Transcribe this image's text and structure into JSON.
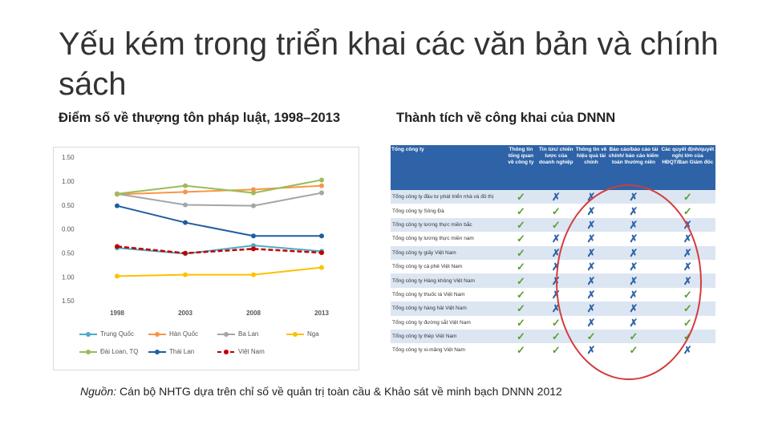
{
  "header": {
    "title": "Yếu kém trong triển khai các văn bản và chính sách"
  },
  "chart_data": {
    "type": "line",
    "title": "Điểm số về thượng tôn pháp luật, 1998–2013",
    "categories": [
      "1998",
      "2003",
      "2008",
      "2013"
    ],
    "ylim": [
      -1.5,
      1.5
    ],
    "yticks": [
      {
        "value": 1.5,
        "label": "1.50"
      },
      {
        "value": 1,
        "label": "1.00"
      },
      {
        "value": 0.5,
        "label": "0.50"
      },
      {
        "value": 0,
        "label": "0.00"
      },
      {
        "value": -0.5,
        "label": "0.50"
      },
      {
        "value": -1,
        "label": "1.00"
      },
      {
        "value": -1.5,
        "label": "1.50"
      }
    ],
    "series": [
      {
        "name": "Trung Quốc",
        "color": "#4bacc6",
        "values": [
          -0.38,
          -0.5,
          -0.33,
          -0.45
        ]
      },
      {
        "name": "Hàn Quốc",
        "color": "#f79646",
        "values": [
          0.74,
          0.79,
          0.84,
          0.92
        ]
      },
      {
        "name": "Ba Lan",
        "color": "#a5a5a5",
        "values": [
          0.75,
          0.52,
          0.5,
          0.77
        ]
      },
      {
        "name": "Nga",
        "color": "#ffc000",
        "values": [
          -0.97,
          -0.94,
          -0.94,
          -0.79
        ]
      },
      {
        "name": "Đài Loan, TQ",
        "color": "#9bbb59",
        "values": [
          0.75,
          0.92,
          0.77,
          1.04
        ]
      },
      {
        "name": "Thái Lan",
        "color": "#1f5e9e",
        "values": [
          0.5,
          0.15,
          -0.13,
          -0.13
        ]
      },
      {
        "name": "Việt Nam",
        "color": "#c00000",
        "line_style": "dashed",
        "values": [
          -0.35,
          -0.49,
          -0.4,
          -0.48
        ]
      }
    ]
  },
  "table": {
    "title": "Thành tích về công khai của DNNN",
    "columns": [
      "Tổng công ty",
      "Thông tin tổng quan về công ty",
      "Tin tức/ chiến lược của doanh nghiệp",
      "Thông tin về hiệu quả tài chính",
      "Báo cáo/báo cáo tài chính/ báo cáo kiểm toán thường niên",
      "Các quyết định/quyết nghị lớn của HĐQT/Ban Giám đốc"
    ],
    "rows": [
      [
        "Tổng công ty đầu tư phát triển nhà và đô thị",
        "✓",
        "✗",
        "✗",
        "✗",
        "✓"
      ],
      [
        "Tổng công ty Sông Đà",
        "✓",
        "✓",
        "✗",
        "✗",
        "✓"
      ],
      [
        "Tổng công ty lương thực miền bắc",
        "✓",
        "✓",
        "✗",
        "✗",
        "✗"
      ],
      [
        "Tổng công ty lương thực miền nam",
        "✓",
        "✗",
        "✗",
        "✗",
        "✗"
      ],
      [
        "Tổng công ty giấy Việt Nam",
        "✓",
        "✗",
        "✗",
        "✗",
        "✗"
      ],
      [
        "Tổng công ty cà phê Việt Nam",
        "✓",
        "✗",
        "✗",
        "✗",
        "✗"
      ],
      [
        "Tổng công ty Hàng không Việt Nam",
        "✓",
        "✗",
        "✗",
        "✗",
        "✗"
      ],
      [
        "Tổng công ty thuốc lá Việt Nam",
        "✓",
        "✗",
        "✗",
        "✗",
        "✓"
      ],
      [
        "Tổng công ty hàng hải Việt Nam",
        "✓",
        "✗",
        "✗",
        "✗",
        "✓"
      ],
      [
        "Tổng công ty đường sắt Việt Nam",
        "✓",
        "✓",
        "✗",
        "✗",
        "✓"
      ],
      [
        "Tổng công ty thép Việt Nam",
        "✓",
        "✓",
        "✓",
        "✓",
        "✓"
      ],
      [
        "Tổng công ty xi-măng Việt Nam",
        "✓",
        "✓",
        "✗",
        "✓",
        "✗"
      ]
    ]
  },
  "source": {
    "label": "Nguồn:",
    "text": "Cán bộ NHTG dựa trên chỉ số về quản trị toàn cầu & Khảo sát về minh bạch DNNN 2012"
  }
}
